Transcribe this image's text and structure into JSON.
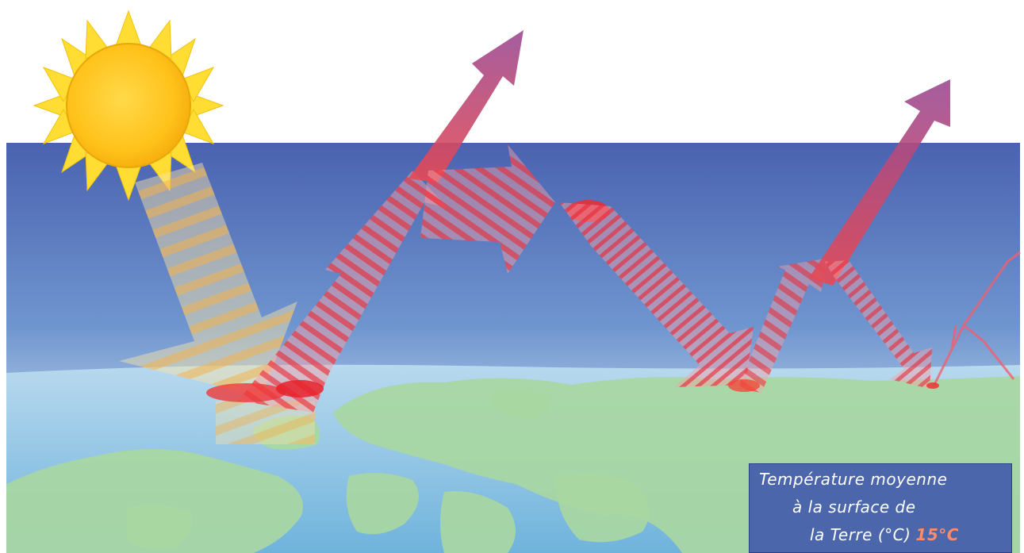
{
  "caption": {
    "line1": "Température moyenne",
    "line2": "à la surface de",
    "line3": "la Terre (°C)",
    "value": "15°C"
  },
  "colors": {
    "sky_top": "#4b63b0",
    "sky_bottom": "#c9dff0",
    "land": "#a9d8a4",
    "sea": "#8fc3e2",
    "sun": "#ffd21f",
    "solar_arrow": "#f5c46b",
    "infrared_arrow": "#f04a4f",
    "space_arrow": "#a14a8e",
    "box_bg": "#435caa",
    "temp_value": "#ff8b6a"
  },
  "icons": [
    "sun-icon"
  ]
}
